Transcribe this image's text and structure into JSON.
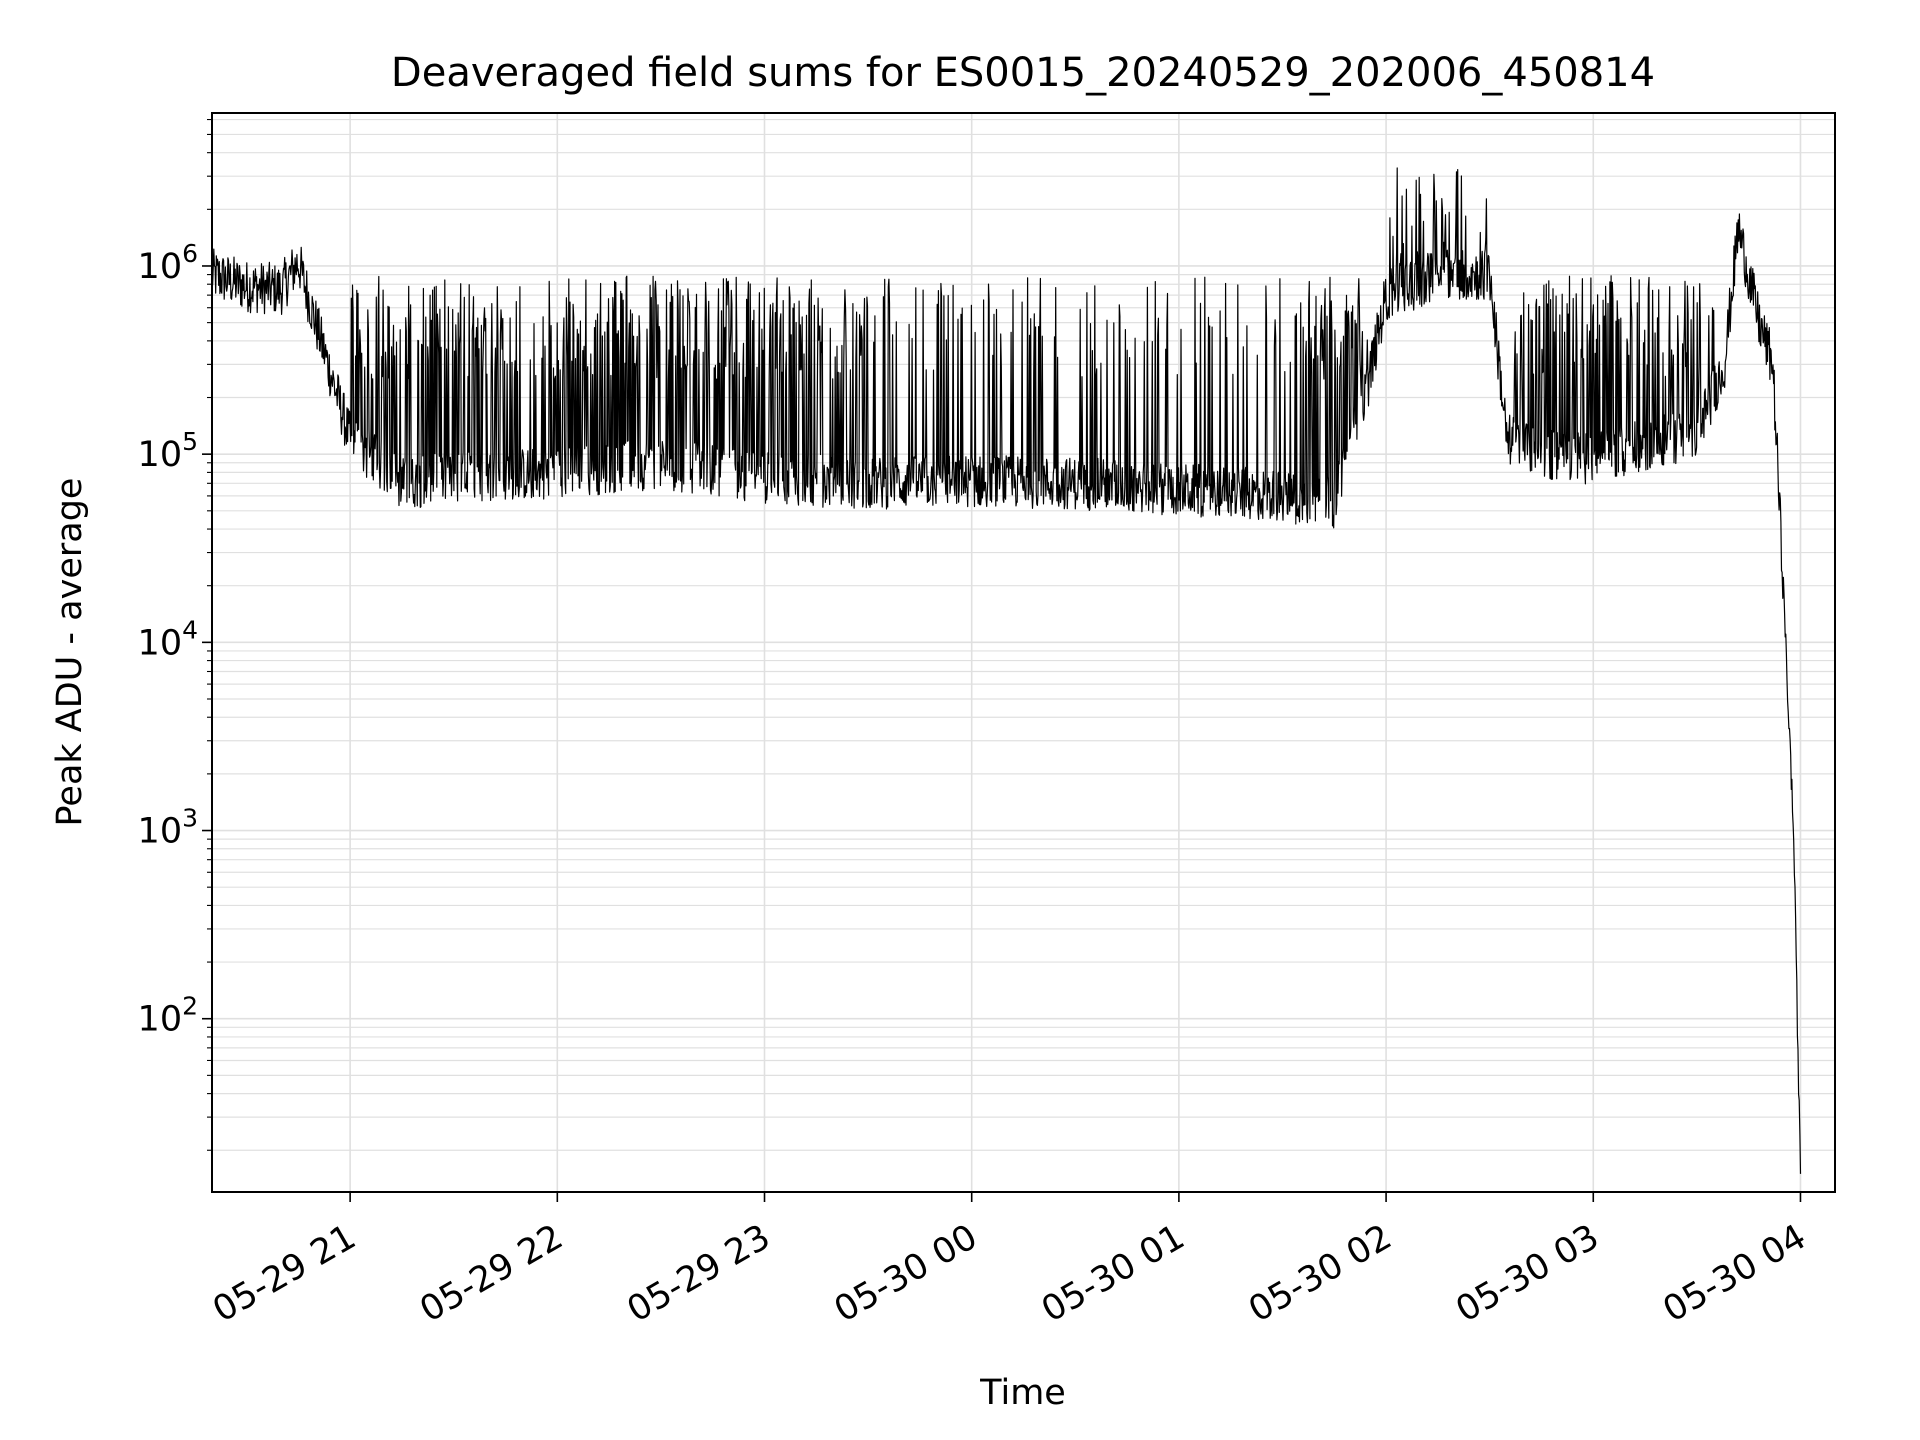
{
  "chart_data": {
    "type": "line",
    "title": "Deaveraged field sums for ES0015_20240529_202006_450814",
    "xlabel": "Time",
    "ylabel": "Peak ADU - average",
    "x_tick_labels": [
      "05-29 21",
      "05-29 22",
      "05-29 23",
      "05-30 00",
      "05-30 01",
      "05-30 02",
      "05-30 03",
      "05-30 04"
    ],
    "y_tick_labels": [
      {
        "base": "10",
        "exp": "2",
        "value": 100
      },
      {
        "base": "10",
        "exp": "3",
        "value": 1000
      },
      {
        "base": "10",
        "exp": "4",
        "value": 10000
      },
      {
        "base": "10",
        "exp": "5",
        "value": 100000
      },
      {
        "base": "10",
        "exp": "6",
        "value": 1000000
      }
    ],
    "x_range": [
      "2024-05-29 20:20",
      "2024-05-30 04:10"
    ],
    "y_range": [
      12,
      6500000
    ],
    "y_scale": "log",
    "grid": true,
    "line_color": "#000000",
    "grid_color": "#e0e0e0",
    "series": [
      {
        "x": [
          "2024-05-29 20:20",
          "2024-05-29 20:30",
          "2024-05-29 20:40",
          "2024-05-29 20:45",
          "2024-05-29 20:50",
          "2024-05-29 21:00",
          "2024-05-29 21:15",
          "2024-05-29 21:30",
          "2024-05-29 22:00",
          "2024-05-29 22:30",
          "2024-05-29 23:00",
          "2024-05-29 23:30",
          "2024-05-30 00:00",
          "2024-05-30 00:30",
          "2024-05-30 01:00",
          "2024-05-30 01:30",
          "2024-05-30 01:45",
          "2024-05-30 01:55",
          "2024-05-30 02:00",
          "2024-05-30 02:15",
          "2024-05-30 02:30",
          "2024-05-30 02:35",
          "2024-05-30 02:45",
          "2024-05-30 03:00",
          "2024-05-30 03:30",
          "2024-05-30 03:38",
          "2024-05-30 03:42",
          "2024-05-30 03:48",
          "2024-05-30 03:52",
          "2024-05-30 03:55",
          "2024-05-30 03:58",
          "2024-05-30 04:00"
        ],
        "values": [
          900000,
          780000,
          750000,
          1050000,
          500000,
          120000,
          70000,
          75000,
          80000,
          90000,
          75000,
          70000,
          72000,
          70000,
          65000,
          60000,
          55000,
          250000,
          700000,
          900000,
          900000,
          120000,
          100000,
          95000,
          130000,
          300000,
          1600000,
          500000,
          300000,
          20000,
          1000,
          15
        ]
      }
    ]
  }
}
